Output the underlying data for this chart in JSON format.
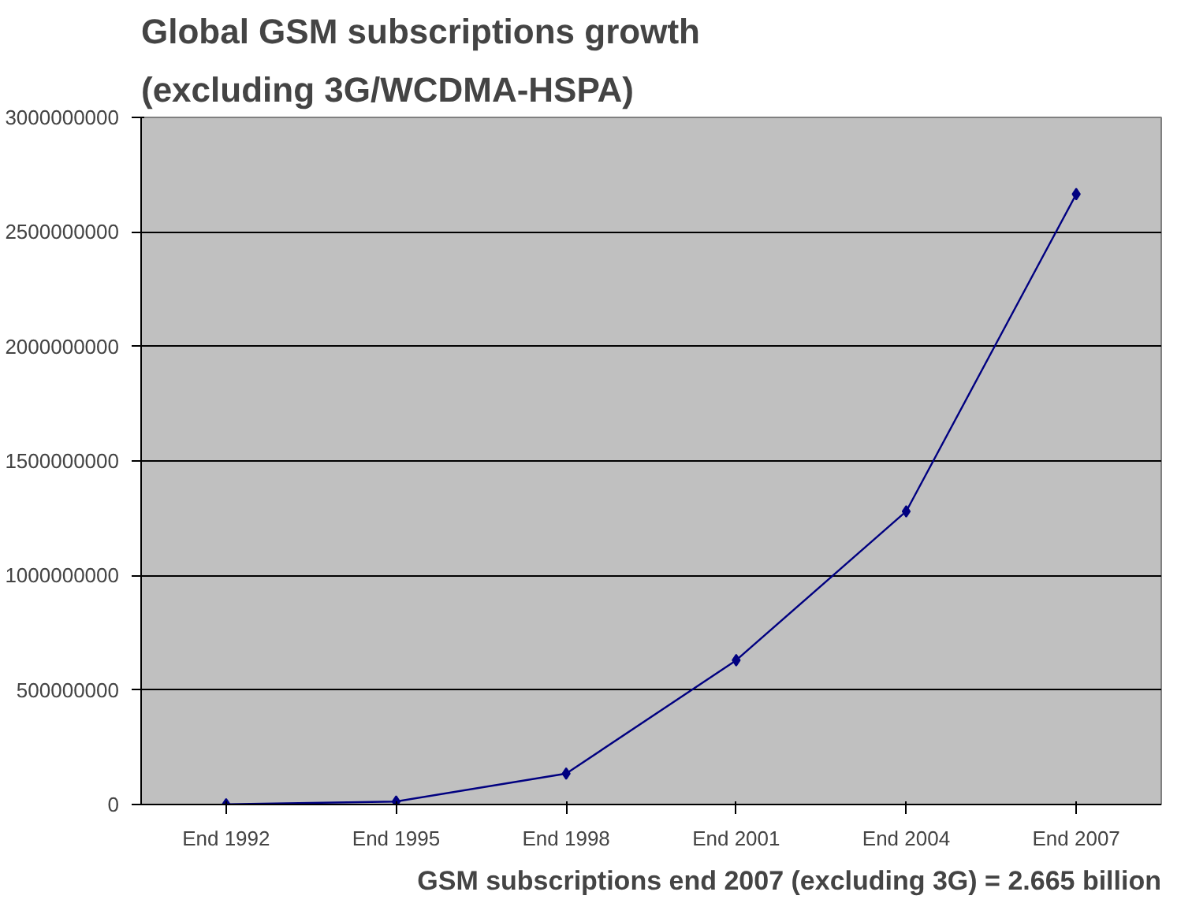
{
  "chart_data": {
    "type": "line",
    "title": [
      "Global GSM subscriptions growth",
      "(excluding 3G/WCDMA-HSPA)"
    ],
    "categories": [
      "End 1992",
      "End 1995",
      "End 1998",
      "End 2001",
      "End 2004",
      "End 2007"
    ],
    "series": [
      {
        "color": "#000080",
        "values": [
          1000000,
          13000000,
          135000000,
          630000000,
          1280000000,
          2665000000
        ]
      }
    ],
    "ylim": [
      0,
      3000000000
    ],
    "yticks": [
      0,
      500000000,
      1000000000,
      1500000000,
      2000000000,
      2500000000,
      3000000000
    ],
    "grid": "y",
    "marker": "diamond",
    "line_style": "solid",
    "annotations": [
      "GSM subscriptions end 2007 (excluding 3G) = 2.665 billion"
    ]
  }
}
